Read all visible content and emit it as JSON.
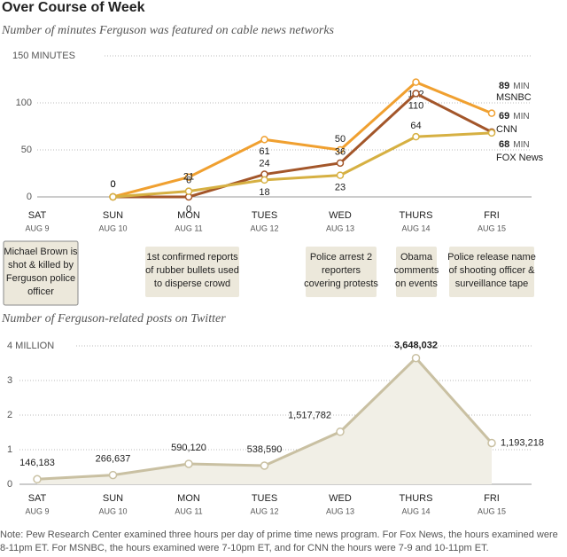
{
  "title": "Over Course of Week",
  "chart_data": [
    {
      "type": "line",
      "subtitle": "Number of minutes Ferguson was featured on cable news networks",
      "categories": [
        "SAT",
        "SUN",
        "MON",
        "TUES",
        "WED",
        "THURS",
        "FRI"
      ],
      "dates": [
        "AUG 9",
        "AUG 10",
        "AUG 11",
        "AUG 12",
        "AUG 13",
        "AUG 14",
        "AUG 15"
      ],
      "unit_label": "MIN",
      "series": [
        {
          "name": "MSNBC",
          "color": "#f0a030",
          "values": [
            null,
            0,
            21,
            61,
            50,
            122,
            89
          ]
        },
        {
          "name": "CNN",
          "color": "#a3562a",
          "values": [
            null,
            0,
            0,
            24,
            36,
            110,
            69
          ]
        },
        {
          "name": "FOX News",
          "color": "#d6b042",
          "values": [
            null,
            0,
            6,
            18,
            23,
            64,
            68
          ]
        }
      ],
      "ylim": [
        0,
        150
      ],
      "yticks": [
        0,
        50,
        100,
        {
          "value": 150,
          "label": "150 MINUTES"
        }
      ],
      "grid": true,
      "annotations": [
        {
          "lines": [
            "Michael Brown is",
            "shot & killed by",
            "Ferguson police",
            "officer"
          ]
        },
        {
          "lines": [
            "1st confirmed reports",
            "of rubber bullets used",
            "to disperse crowd"
          ]
        },
        {
          "lines": [
            "Police arrest 2",
            "reporters",
            "covering protests"
          ]
        },
        {
          "lines": [
            "Obama",
            "comments",
            "on events"
          ]
        },
        {
          "lines": [
            "Police release name",
            "of shooting officer &",
            "surveillance tape"
          ]
        }
      ]
    },
    {
      "type": "area",
      "subtitle": "Number of Ferguson-related posts on Twitter",
      "categories": [
        "SAT",
        "SUN",
        "MON",
        "TUES",
        "WED",
        "THURS",
        "FRI"
      ],
      "dates": [
        "AUG 9",
        "AUG 10",
        "AUG 11",
        "AUG 12",
        "AUG 13",
        "AUG 14",
        "AUG 15"
      ],
      "color": "#c9c0a2",
      "fill": "#f1efe6",
      "values": [
        146183,
        266637,
        590120,
        538590,
        1517782,
        3648032,
        1193218
      ],
      "value_labels": [
        "146,183",
        "266,637",
        "590,120",
        "538,590",
        "1,517,782",
        "3,648,032",
        "1,193,218"
      ],
      "ylim": [
        0,
        4000000
      ],
      "yticks": [
        0,
        {
          "value": 1000000,
          "label": "1"
        },
        {
          "value": 2000000,
          "label": "2"
        },
        {
          "value": 3000000,
          "label": "3"
        },
        {
          "value": 4000000,
          "label": "4 MILLION"
        }
      ],
      "grid": true
    }
  ],
  "note": "Note: Pew Research Center examined three hours per day of prime time news program. For Fox News, the hours examined were 8-11pm ET. For MSNBC, the hours examined were 7-10pm ET, and for CNN the hours were 7-9 and 10-11pm ET."
}
